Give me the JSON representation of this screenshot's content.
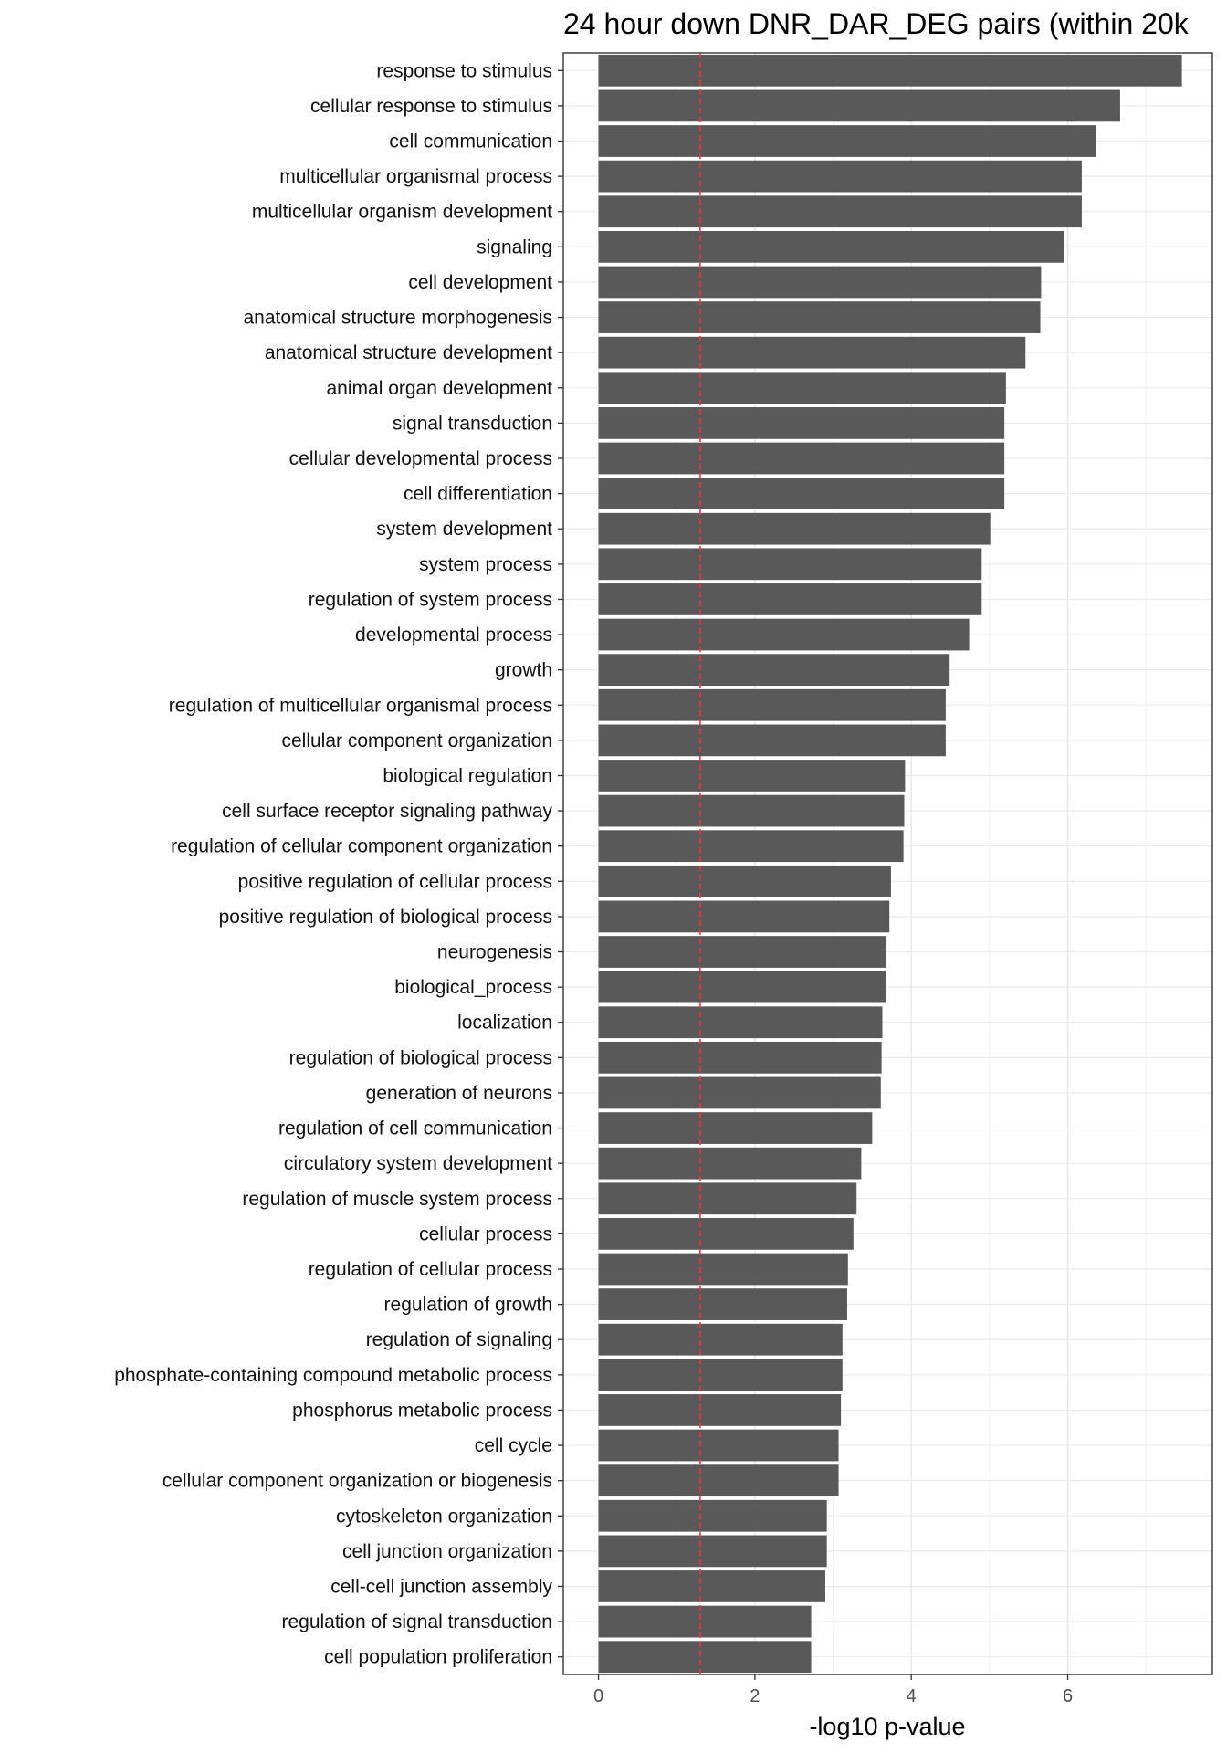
{
  "chart_data": {
    "type": "bar",
    "orientation": "horizontal",
    "title": "24 hour down DNR_DAR_DEG pairs (within 20k",
    "xlabel": "-log10 p-value",
    "ylabel": "",
    "xlim": [
      -0.45,
      7.85
    ],
    "x_ticks": [
      0,
      2,
      4,
      6
    ],
    "grid": true,
    "reference_line": {
      "value": 1.3,
      "color": "#e23b3b",
      "style": "dashed"
    },
    "bar_color": "#595959",
    "categories": [
      "response to stimulus",
      "cellular response to stimulus",
      "cell communication",
      "multicellular organismal process",
      "multicellular organism development",
      "signaling",
      "cell development",
      "anatomical structure morphogenesis",
      "anatomical structure development",
      "animal organ development",
      "signal transduction",
      "cellular developmental process",
      "cell differentiation",
      "system development",
      "system process",
      "regulation of system process",
      "developmental process",
      "growth",
      "regulation of multicellular organismal process",
      "cellular component organization",
      "biological regulation",
      "cell surface receptor signaling pathway",
      "regulation of cellular component organization",
      "positive regulation of cellular process",
      "positive regulation of biological process",
      "neurogenesis",
      "biological_process",
      "localization",
      "regulation of biological process",
      "generation of neurons",
      "regulation of cell communication",
      "circulatory system development",
      "regulation of muscle system process",
      "cellular process",
      "regulation of cellular process",
      "regulation of growth",
      "regulation of signaling",
      "phosphate-containing compound metabolic process",
      "phosphorus metabolic process",
      "cell cycle",
      "cellular component organization or biogenesis",
      "cytoskeleton organization",
      "cell junction organization",
      "cell-cell junction assembly",
      "regulation of signal transduction",
      "cell population proliferation"
    ],
    "values": [
      7.46,
      6.67,
      6.36,
      6.18,
      6.18,
      5.95,
      5.66,
      5.65,
      5.46,
      5.21,
      5.19,
      5.19,
      5.19,
      5.01,
      4.9,
      4.9,
      4.74,
      4.49,
      4.44,
      4.44,
      3.92,
      3.91,
      3.9,
      3.74,
      3.72,
      3.68,
      3.68,
      3.63,
      3.62,
      3.61,
      3.5,
      3.36,
      3.3,
      3.26,
      3.19,
      3.18,
      3.12,
      3.12,
      3.1,
      3.07,
      3.07,
      2.92,
      2.92,
      2.9,
      2.72,
      2.72
    ]
  }
}
